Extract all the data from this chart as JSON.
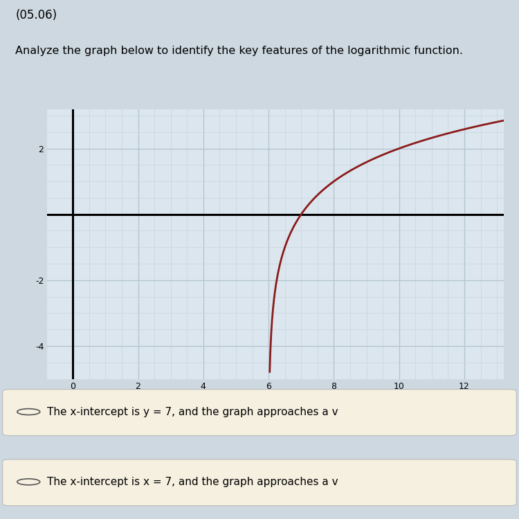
{
  "title": "(05.06)",
  "subtitle": "Analyze the graph below to identify the key features of the logarithmic function.",
  "bg_color": "#cdd8e0",
  "graph_bg_color": "#dce6ee",
  "grid_major_color": "#b0c4d0",
  "grid_minor_color": "#c5d5df",
  "curve_color": "#8b1a1a",
  "axis_color": "#000000",
  "vertical_asymptote": 6,
  "x_intercept": 7,
  "xlim": [
    -0.8,
    13.2
  ],
  "ylim": [
    -4.8,
    3.2
  ],
  "xticks": [
    0,
    2,
    4,
    6,
    8,
    10,
    12
  ],
  "yticks": [
    -4,
    -2,
    0,
    2
  ],
  "answer_bg_color": "#e8dfc8",
  "answer_options": [
    "The x-intercept is y = 7, and the graph approaches a v",
    "The x-intercept is x = 7, and the graph approaches a v"
  ]
}
